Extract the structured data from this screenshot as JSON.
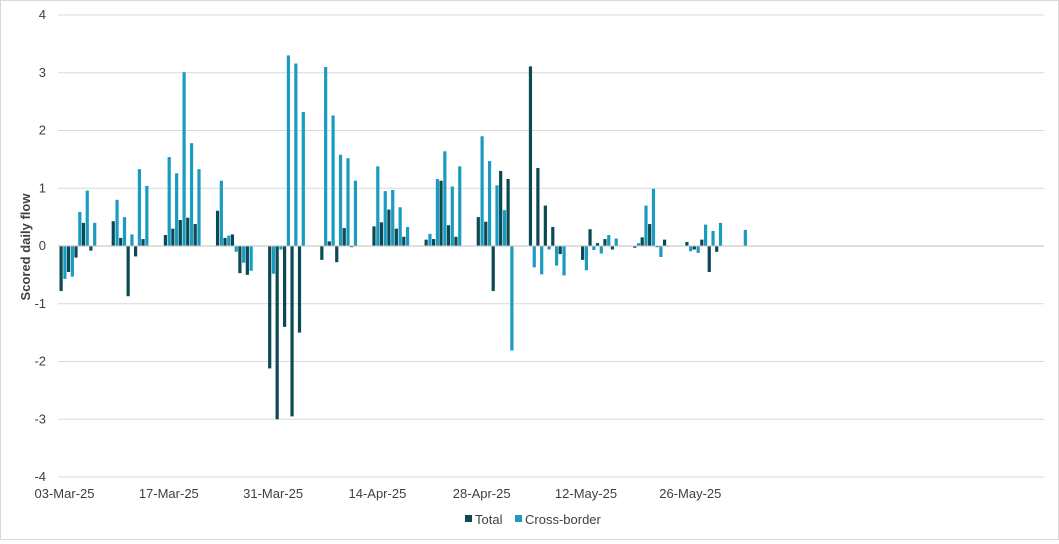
{
  "chart_data": {
    "type": "bar",
    "title": "",
    "xlabel": "",
    "ylabel": "Scored daily flow",
    "ylim": [
      -4,
      4
    ],
    "yticks": [
      -4,
      -3,
      -2,
      -1,
      0,
      1,
      2,
      3,
      4
    ],
    "grid": "horizontal",
    "legend": "bottom",
    "x_tick_labels": [
      "03-Mar-25",
      "17-Mar-25",
      "31-Mar-25",
      "14-Apr-25",
      "28-Apr-25",
      "12-May-25",
      "26-May-25"
    ],
    "dates": [
      "03-Mar-25",
      "04-Mar-25",
      "05-Mar-25",
      "06-Mar-25",
      "07-Mar-25",
      "10-Mar-25",
      "11-Mar-25",
      "12-Mar-25",
      "13-Mar-25",
      "14-Mar-25",
      "17-Mar-25",
      "18-Mar-25",
      "19-Mar-25",
      "20-Mar-25",
      "21-Mar-25",
      "24-Mar-25",
      "25-Mar-25",
      "26-Mar-25",
      "27-Mar-25",
      "28-Mar-25",
      "31-Mar-25",
      "01-Apr-25",
      "02-Apr-25",
      "03-Apr-25",
      "04-Apr-25",
      "07-Apr-25",
      "08-Apr-25",
      "09-Apr-25",
      "10-Apr-25",
      "11-Apr-25",
      "14-Apr-25",
      "15-Apr-25",
      "16-Apr-25",
      "17-Apr-25",
      "18-Apr-25",
      "21-Apr-25",
      "22-Apr-25",
      "23-Apr-25",
      "24-Apr-25",
      "25-Apr-25",
      "28-Apr-25",
      "29-Apr-25",
      "30-Apr-25",
      "01-May-25",
      "02-May-25",
      "05-May-25",
      "06-May-25",
      "07-May-25",
      "08-May-25",
      "09-May-25",
      "12-May-25",
      "13-May-25",
      "14-May-25",
      "15-May-25",
      "16-May-25",
      "19-May-25",
      "20-May-25",
      "21-May-25",
      "22-May-25",
      "23-May-25",
      "26-May-25",
      "27-May-25",
      "28-May-25",
      "29-May-25",
      "30-May-25"
    ],
    "series": [
      {
        "name": "Total",
        "color": "#0b4a52",
        "values": [
          -0.78,
          -0.45,
          -0.2,
          0.4,
          -0.08,
          0.43,
          0.14,
          -0.87,
          -0.18,
          0.12,
          0.19,
          0.3,
          0.45,
          0.49,
          0.38,
          0.61,
          0.14,
          0.2,
          -0.47,
          -0.5,
          -2.12,
          -3.0,
          -1.4,
          -2.95,
          -1.5,
          -0.24,
          0.08,
          -0.28,
          0.31,
          -0.02,
          0.34,
          0.41,
          0.63,
          0.3,
          0.16,
          0.11,
          0.12,
          1.13,
          0.36,
          0.16,
          0.5,
          0.42,
          -0.78,
          1.3,
          1.16,
          3.11,
          1.35,
          0.7,
          0.33,
          -0.14,
          -0.24,
          0.29,
          0.05,
          0.12,
          -0.06,
          -0.03,
          0.15,
          0.38,
          -0.02,
          0.11,
          0.07,
          -0.06,
          0.11,
          -0.45,
          -0.1
        ]
      },
      {
        "name": "Cross-border",
        "color": "#1a9bbf",
        "values": [
          -0.57,
          -0.53,
          0.59,
          0.96,
          0.4,
          0.8,
          0.5,
          0.2,
          1.33,
          1.04,
          1.54,
          1.26,
          3.01,
          1.78,
          1.33,
          1.13,
          0.18,
          -0.1,
          -0.29,
          -0.43,
          -0.48,
          -0.06,
          3.3,
          3.16,
          2.32,
          3.1,
          2.26,
          1.58,
          1.52,
          1.13,
          1.38,
          0.95,
          0.97,
          0.67,
          0.33,
          0.21,
          1.16,
          1.64,
          1.03,
          1.38,
          1.9,
          1.47,
          1.05,
          0.62,
          -1.81,
          -0.37,
          -0.49,
          -0.06,
          -0.34,
          -0.51,
          -0.42,
          -0.07,
          -0.13,
          0.19,
          0.13,
          0.05,
          0.7,
          0.99,
          -0.19,
          0.0,
          -0.09,
          -0.12,
          0.37,
          0.26,
          0.4
        ]
      }
    ],
    "extra": {
      "series": "Cross-border",
      "value": 0.28
    }
  }
}
